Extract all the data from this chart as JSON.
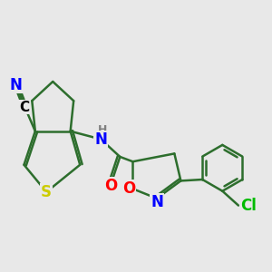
{
  "bg_color": "#E8E8E8",
  "bond_color": "#2d6e2d",
  "bond_width": 1.8,
  "atom_colors": {
    "S": "#cccc00",
    "N": "#0000ff",
    "O": "#ff0000",
    "Cl": "#00bb00",
    "C": "#000000",
    "H": "#808080"
  },
  "font_size": 11
}
